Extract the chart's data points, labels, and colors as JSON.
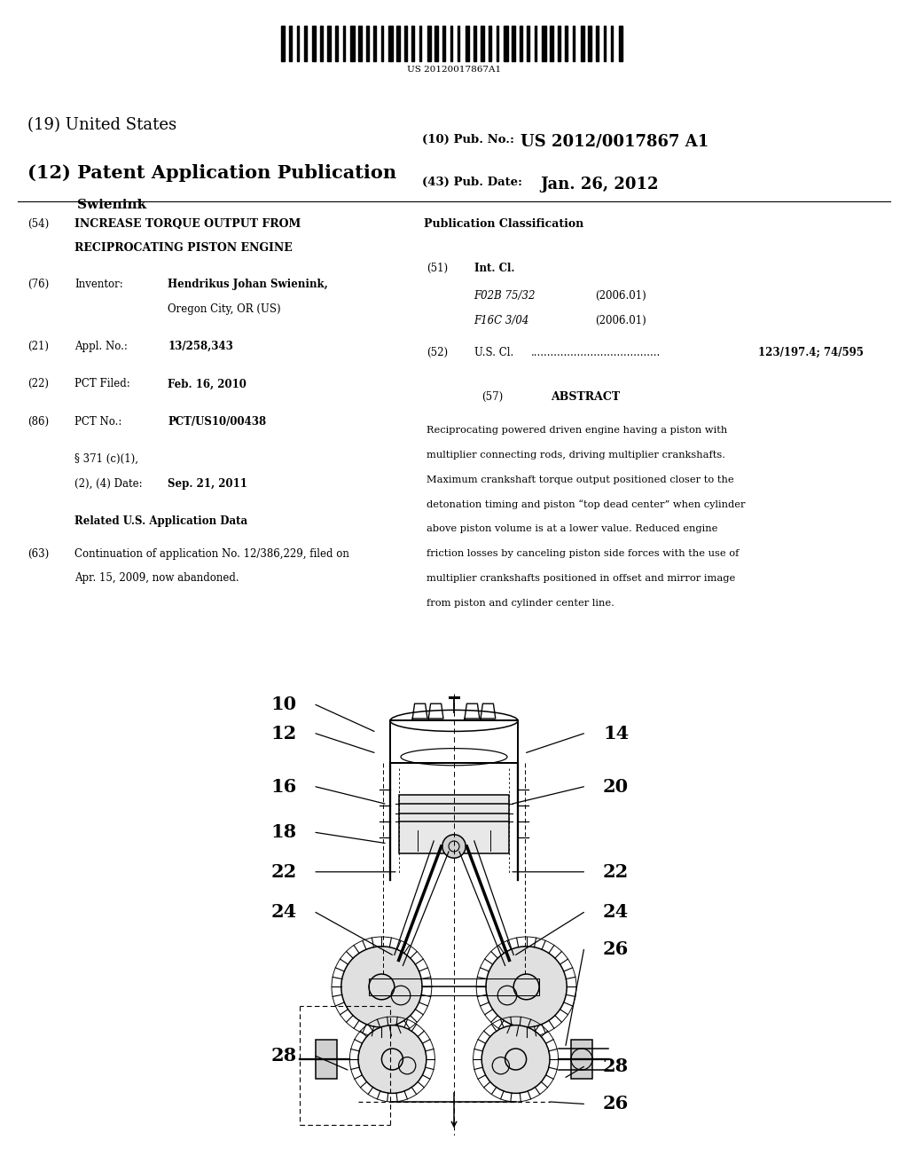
{
  "background_color": "#ffffff",
  "barcode_text": "US 20120017867A1",
  "title_19": "(19) United States",
  "title_12": "(12) Patent Application Publication",
  "pub_no_label": "(10) Pub. No.:",
  "pub_no_value": "US 2012/0017867 A1",
  "inventor_label": "Swienink",
  "pub_date_label": "(43) Pub. Date:",
  "pub_date_value": "Jan. 26, 2012",
  "section54_num": "(54)",
  "section54_title_line1": "INCREASE TORQUE OUTPUT FROM",
  "section54_title_line2": "RECIPROCATING PISTON ENGINE",
  "section76_num": "(76)",
  "section76_label": "Inventor:",
  "section76_name": "Hendrikus Johan Swienink,",
  "section76_addr": "Oregon City, OR (US)",
  "section21_num": "(21)",
  "section21_label": "Appl. No.:",
  "section21_value": "13/258,343",
  "section22_num": "(22)",
  "section22_label": "PCT Filed:",
  "section22_value": "Feb. 16, 2010",
  "section86_num": "(86)",
  "section86_label": "PCT No.:",
  "section86_value": "PCT/US10/00438",
  "section371_line1": "§ 371 (c)(1),",
  "section371_line2": "(2), (4) Date:",
  "section371_value": "Sep. 21, 2011",
  "related_heading": "Related U.S. Application Data",
  "section63_num": "(63)",
  "section63_text_line1": "Continuation of application No. 12/386,229, filed on",
  "section63_text_line2": "Apr. 15, 2009, now abandoned.",
  "pub_class_heading": "Publication Classification",
  "section51_num": "(51)",
  "section51_label": "Int. Cl.",
  "section51_row1_code": "F02B 75/32",
  "section51_row1_year": "(2006.01)",
  "section51_row2_code": "F16C 3/04",
  "section51_row2_year": "(2006.01)",
  "section52_num": "(52)",
  "section52_label": "U.S. Cl.",
  "section52_dots": ".......................................",
  "section52_value": "123/197.4; 74/595",
  "section57_num": "(57)",
  "section57_heading": "ABSTRACT",
  "abstract_lines": [
    "Reciprocating powered driven engine having a piston with",
    "multiplier connecting rods, driving multiplier crankshafts.",
    "Maximum crankshaft torque output positioned closer to the",
    "detonation timing and piston “top dead center” when cylinder",
    "above piston volume is at a lower value. Reduced engine",
    "friction losses by canceling piston side forces with the use of",
    "multiplier crankshafts positioned in offset and mirror image",
    "from piston and cylinder center line."
  ]
}
